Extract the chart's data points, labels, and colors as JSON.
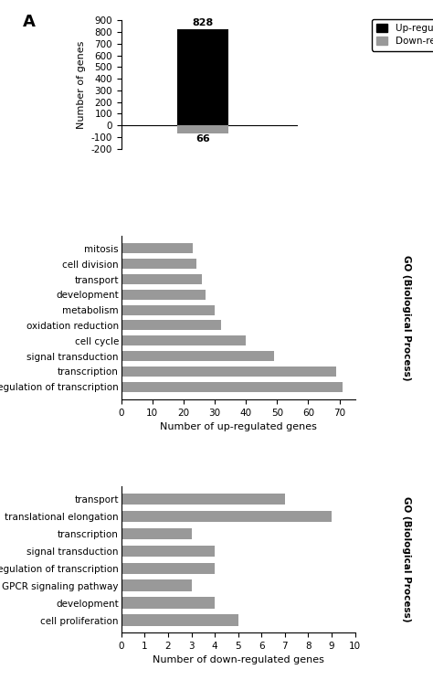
{
  "panel_A": {
    "up_value": 828,
    "down_value": 66,
    "up_color": "#000000",
    "down_color": "#999999",
    "ylabel": "Number of genes",
    "ylim": [
      -200,
      900
    ],
    "yticks": [
      -200,
      -100,
      0,
      100,
      200,
      300,
      400,
      500,
      600,
      700,
      800,
      900
    ],
    "legend_up": "Up-regulated genes",
    "legend_down": "Down-regulated genes"
  },
  "panel_B": {
    "categories": [
      "regulation of transcription",
      "transcription",
      "signal transduction",
      "cell cycle",
      "oxidation reduction",
      "metabolism",
      "development",
      "transport",
      "cell division",
      "mitosis"
    ],
    "values": [
      71,
      69,
      49,
      40,
      32,
      30,
      27,
      26,
      24,
      23
    ],
    "bar_color": "#999999",
    "xlabel": "Number of up-regulated genes",
    "go_label": "GO (Biological Process)",
    "xlim": [
      0,
      75
    ],
    "xticks": [
      0,
      10,
      20,
      30,
      40,
      50,
      60,
      70
    ]
  },
  "panel_C": {
    "categories": [
      "cell proliferation",
      "development",
      "GPCR signaling pathway",
      "regulation of transcription",
      "signal transduction",
      "transcription",
      "translational elongation",
      "transport"
    ],
    "values": [
      5,
      4,
      3,
      4,
      4,
      3,
      9,
      7
    ],
    "bar_color": "#999999",
    "xlabel": "Number of down-regulated genes",
    "go_label": "GO (Biological Process)",
    "xlim": [
      0,
      10
    ],
    "xticks": [
      0,
      1,
      2,
      3,
      4,
      5,
      6,
      7,
      8,
      9,
      10
    ]
  },
  "label_fontsize": 8,
  "tick_fontsize": 7.5,
  "background_color": "#ffffff"
}
